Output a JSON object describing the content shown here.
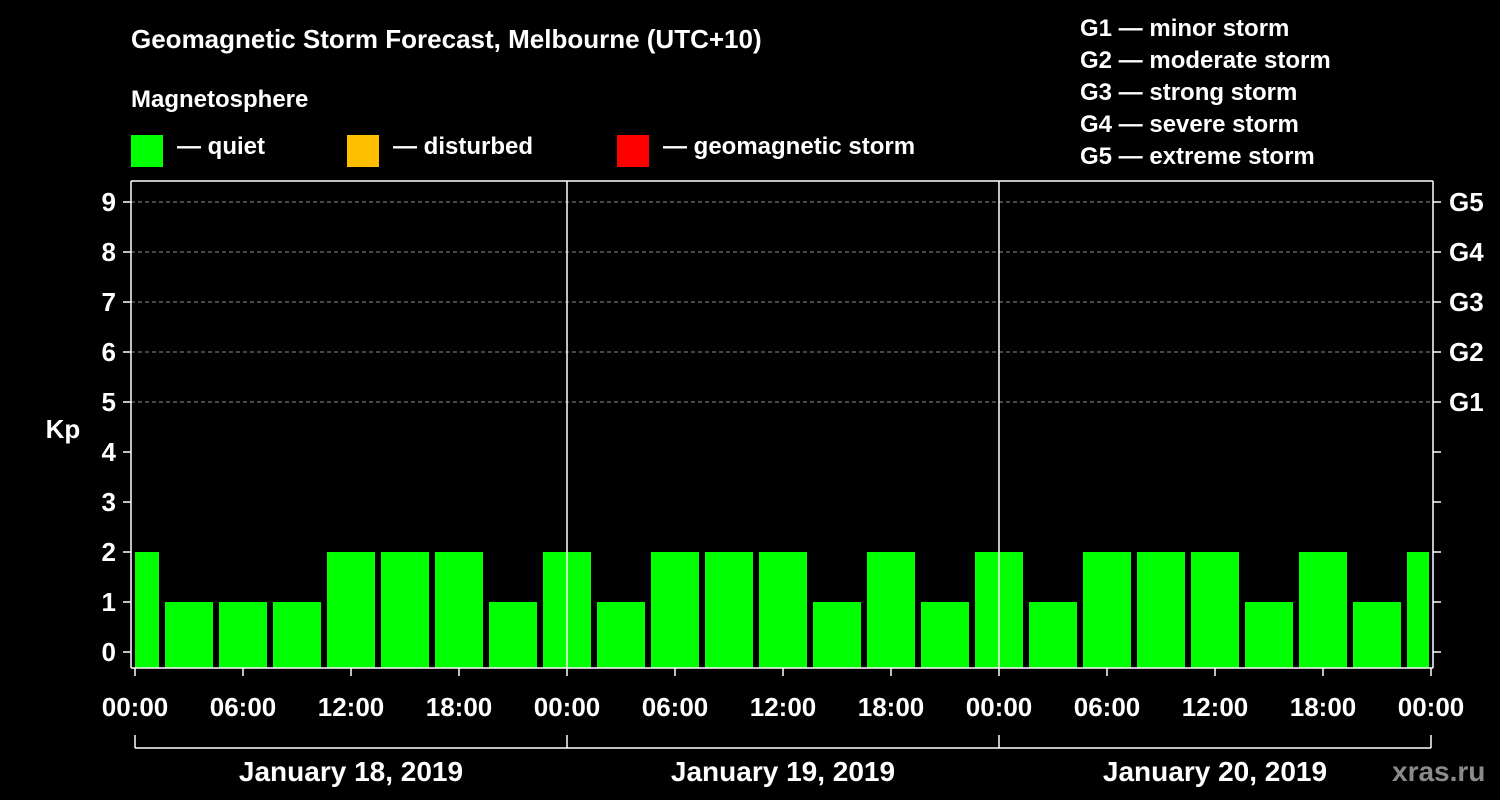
{
  "header": {
    "title": "Geomagnetic Storm Forecast, Melbourne (UTC+10)",
    "subtitle": "Magnetosphere"
  },
  "legend": [
    {
      "label": "— quiet",
      "color": "#00ff00"
    },
    {
      "label": "— disturbed",
      "color": "#ffbf00"
    },
    {
      "label": "— geomagnetic storm",
      "color": "#ff0000"
    }
  ],
  "g_scale": [
    "G1 — minor storm",
    "G2 — moderate storm",
    "G3 — strong storm",
    "G4 — severe storm",
    "G5 — extreme storm"
  ],
  "watermark": "xras.ru",
  "chart_data": {
    "type": "bar",
    "title": "Geomagnetic Storm Forecast, Melbourne (UTC+10)",
    "ylabel": "Kp",
    "ylim": [
      0,
      9
    ],
    "yticks": [
      "0",
      "1",
      "2",
      "3",
      "4",
      "5",
      "6",
      "7",
      "8",
      "9"
    ],
    "right_ticks": [
      {
        "kp": 5,
        "label": "G1"
      },
      {
        "kp": 6,
        "label": "G2"
      },
      {
        "kp": 7,
        "label": "G3"
      },
      {
        "kp": 8,
        "label": "G4"
      },
      {
        "kp": 9,
        "label": "G5"
      }
    ],
    "x_hours_range": [
      0,
      72
    ],
    "xtick_labels": [
      "00:00",
      "06:00",
      "12:00",
      "18:00",
      "00:00",
      "06:00",
      "12:00",
      "18:00",
      "00:00",
      "06:00",
      "12:00",
      "18:00",
      "00:00"
    ],
    "days": [
      "January 18, 2019",
      "January 19, 2019",
      "January 20, 2019"
    ],
    "bar_width_hours": 3,
    "bar_centers_hours": [
      0,
      3,
      6,
      9,
      12,
      15,
      18,
      21,
      24,
      27,
      30,
      33,
      36,
      39,
      42,
      45,
      48,
      51,
      54,
      57,
      60,
      63,
      66,
      69,
      72
    ],
    "values": [
      2,
      1,
      1,
      1,
      2,
      2,
      2,
      1,
      2,
      1,
      2,
      2,
      2,
      1,
      2,
      1,
      2,
      1,
      2,
      2,
      2,
      1,
      2,
      1,
      2
    ],
    "bar_color": "#00ff00",
    "grid": "dashed at Kp 5-9"
  }
}
